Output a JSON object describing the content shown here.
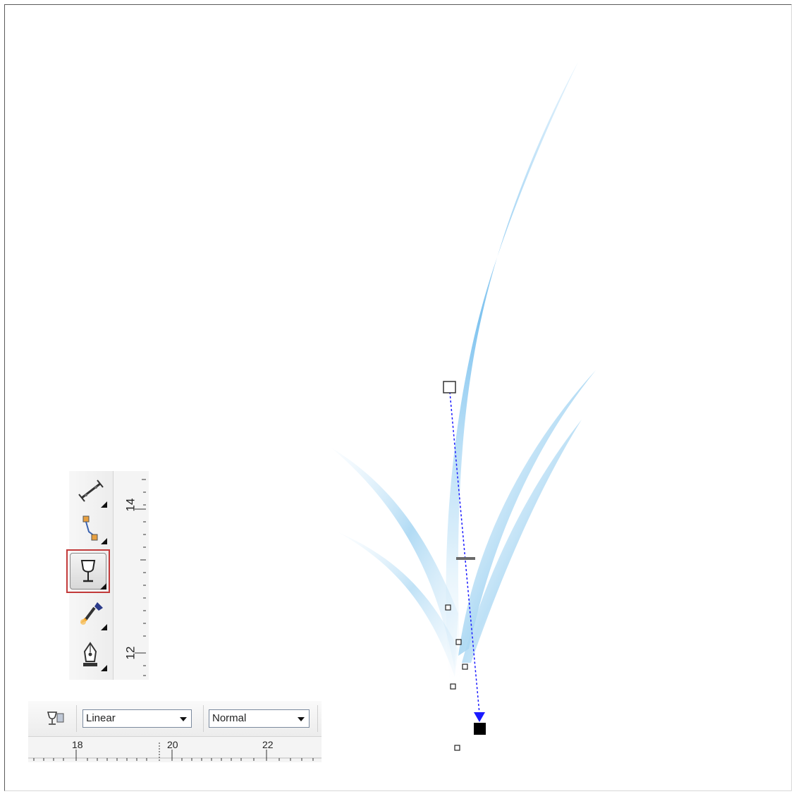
{
  "toolbox": {
    "ruler_labels": [
      "14",
      "12"
    ],
    "tools": [
      {
        "name": "dimension-tool",
        "icon": "dimension-icon"
      },
      {
        "name": "connector-tool",
        "icon": "connector-icon"
      },
      {
        "name": "interactive-transparency-tool",
        "icon": "wine-glass-icon",
        "active": true
      },
      {
        "name": "eyedropper-tool",
        "icon": "eyedropper-icon"
      },
      {
        "name": "outline-pen-tool",
        "icon": "pen-nib-icon"
      }
    ]
  },
  "property_bar": {
    "transparency_type": "Linear",
    "merge_mode": "Normal"
  },
  "horizontal_ruler": {
    "labels": [
      "18",
      "20",
      "22"
    ]
  },
  "colors": {
    "leaf": "#8ccaf0",
    "vector_arrow": "#1a1aff",
    "selection_border": "#c23a3a"
  }
}
